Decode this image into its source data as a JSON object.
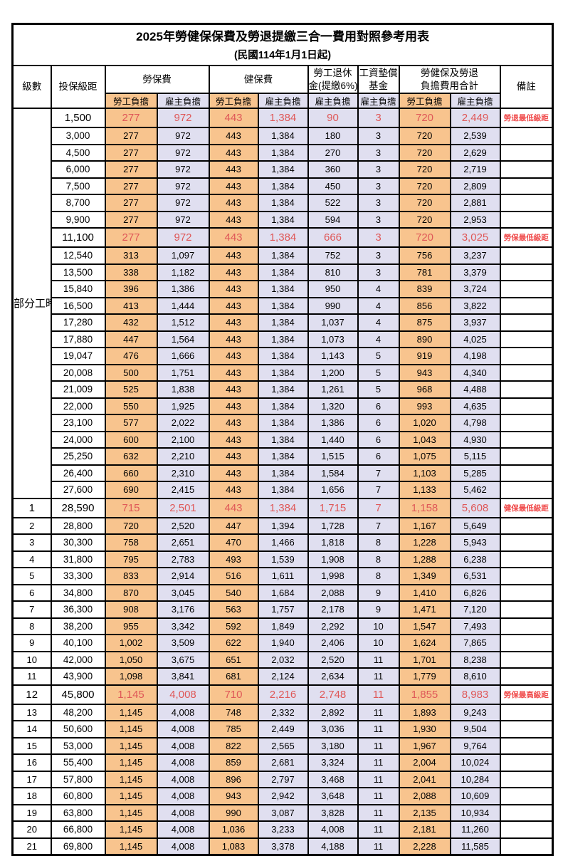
{
  "title": "2025年勞健保保費及勞退提繳三合一費用對照參考用表",
  "subtitle": "(民國114年1月1日起)",
  "header": {
    "level": "級數",
    "salary": "投保級距",
    "labor_group": "勞保費",
    "health_group": "健保費",
    "pension_line1": "勞工退休",
    "pension_line2": "金(提繳6%)",
    "wage_fund_line1": "工資墊償",
    "wage_fund_line2": "基金",
    "total_line1": "勞健保及勞退",
    "total_line2": "負擔費用合計",
    "remark": "備註",
    "employee": "勞工負擔",
    "employer": "雇主負擔"
  },
  "partial_time_label": "部分工時",
  "partial_time_rowspan": 23,
  "colors": {
    "emp": "#F8C48E",
    "er": "#E0DFF0",
    "red": "#DF5858",
    "remark_red": "#F04B4B"
  },
  "row_fields": [
    "level",
    "salary",
    "labor_employee",
    "labor_employer",
    "health_employee",
    "health_employer",
    "pension_employer",
    "wage_fund_employer",
    "total_employee",
    "total_employer",
    "remark",
    "highlight"
  ],
  "rows": [
    [
      "",
      "1,500",
      "277",
      "972",
      "443",
      "1,384",
      "90",
      "3",
      "720",
      "2,449",
      "勞退最低級距",
      true
    ],
    [
      "",
      "3,000",
      "277",
      "972",
      "443",
      "1,384",
      "180",
      "3",
      "720",
      "2,539",
      "",
      false
    ],
    [
      "",
      "4,500",
      "277",
      "972",
      "443",
      "1,384",
      "270",
      "3",
      "720",
      "2,629",
      "",
      false
    ],
    [
      "",
      "6,000",
      "277",
      "972",
      "443",
      "1,384",
      "360",
      "3",
      "720",
      "2,719",
      "",
      false
    ],
    [
      "",
      "7,500",
      "277",
      "972",
      "443",
      "1,384",
      "450",
      "3",
      "720",
      "2,809",
      "",
      false
    ],
    [
      "",
      "8,700",
      "277",
      "972",
      "443",
      "1,384",
      "522",
      "3",
      "720",
      "2,881",
      "",
      false
    ],
    [
      "",
      "9,900",
      "277",
      "972",
      "443",
      "1,384",
      "594",
      "3",
      "720",
      "2,953",
      "",
      false
    ],
    [
      "",
      "11,100",
      "277",
      "972",
      "443",
      "1,384",
      "666",
      "3",
      "720",
      "3,025",
      "勞保最低級距",
      true
    ],
    [
      "",
      "12,540",
      "313",
      "1,097",
      "443",
      "1,384",
      "752",
      "3",
      "756",
      "3,237",
      "",
      false
    ],
    [
      "",
      "13,500",
      "338",
      "1,182",
      "443",
      "1,384",
      "810",
      "3",
      "781",
      "3,379",
      "",
      false
    ],
    [
      "",
      "15,840",
      "396",
      "1,386",
      "443",
      "1,384",
      "950",
      "4",
      "839",
      "3,724",
      "",
      false
    ],
    [
      "",
      "16,500",
      "413",
      "1,444",
      "443",
      "1,384",
      "990",
      "4",
      "856",
      "3,822",
      "",
      false
    ],
    [
      "",
      "17,280",
      "432",
      "1,512",
      "443",
      "1,384",
      "1,037",
      "4",
      "875",
      "3,937",
      "",
      false
    ],
    [
      "",
      "17,880",
      "447",
      "1,564",
      "443",
      "1,384",
      "1,073",
      "4",
      "890",
      "4,025",
      "",
      false
    ],
    [
      "",
      "19,047",
      "476",
      "1,666",
      "443",
      "1,384",
      "1,143",
      "5",
      "919",
      "4,198",
      "",
      false
    ],
    [
      "",
      "20,008",
      "500",
      "1,751",
      "443",
      "1,384",
      "1,200",
      "5",
      "943",
      "4,340",
      "",
      false
    ],
    [
      "",
      "21,009",
      "525",
      "1,838",
      "443",
      "1,384",
      "1,261",
      "5",
      "968",
      "4,488",
      "",
      false
    ],
    [
      "",
      "22,000",
      "550",
      "1,925",
      "443",
      "1,384",
      "1,320",
      "6",
      "993",
      "4,635",
      "",
      false
    ],
    [
      "",
      "23,100",
      "577",
      "2,022",
      "443",
      "1,384",
      "1,386",
      "6",
      "1,020",
      "4,798",
      "",
      false
    ],
    [
      "",
      "24,000",
      "600",
      "2,100",
      "443",
      "1,384",
      "1,440",
      "6",
      "1,043",
      "4,930",
      "",
      false
    ],
    [
      "",
      "25,250",
      "632",
      "2,210",
      "443",
      "1,384",
      "1,515",
      "6",
      "1,075",
      "5,115",
      "",
      false
    ],
    [
      "",
      "26,400",
      "660",
      "2,310",
      "443",
      "1,384",
      "1,584",
      "7",
      "1,103",
      "5,285",
      "",
      false
    ],
    [
      "",
      "27,600",
      "690",
      "2,415",
      "443",
      "1,384",
      "1,656",
      "7",
      "1,133",
      "5,462",
      "",
      false
    ],
    [
      "1",
      "28,590",
      "715",
      "2,501",
      "443",
      "1,384",
      "1,715",
      "7",
      "1,158",
      "5,608",
      "健保最低級距",
      true
    ],
    [
      "2",
      "28,800",
      "720",
      "2,520",
      "447",
      "1,394",
      "1,728",
      "7",
      "1,167",
      "5,649",
      "",
      false
    ],
    [
      "3",
      "30,300",
      "758",
      "2,651",
      "470",
      "1,466",
      "1,818",
      "8",
      "1,228",
      "5,943",
      "",
      false
    ],
    [
      "4",
      "31,800",
      "795",
      "2,783",
      "493",
      "1,539",
      "1,908",
      "8",
      "1,288",
      "6,238",
      "",
      false
    ],
    [
      "5",
      "33,300",
      "833",
      "2,914",
      "516",
      "1,611",
      "1,998",
      "8",
      "1,349",
      "6,531",
      "",
      false
    ],
    [
      "6",
      "34,800",
      "870",
      "3,045",
      "540",
      "1,684",
      "2,088",
      "9",
      "1,410",
      "6,826",
      "",
      false
    ],
    [
      "7",
      "36,300",
      "908",
      "3,176",
      "563",
      "1,757",
      "2,178",
      "9",
      "1,471",
      "7,120",
      "",
      false
    ],
    [
      "8",
      "38,200",
      "955",
      "3,342",
      "592",
      "1,849",
      "2,292",
      "10",
      "1,547",
      "7,493",
      "",
      false
    ],
    [
      "9",
      "40,100",
      "1,002",
      "3,509",
      "622",
      "1,940",
      "2,406",
      "10",
      "1,624",
      "7,865",
      "",
      false
    ],
    [
      "10",
      "42,000",
      "1,050",
      "3,675",
      "651",
      "2,032",
      "2,520",
      "11",
      "1,701",
      "8,238",
      "",
      false
    ],
    [
      "11",
      "43,900",
      "1,098",
      "3,841",
      "681",
      "2,124",
      "2,634",
      "11",
      "1,779",
      "8,610",
      "",
      false
    ],
    [
      "12",
      "45,800",
      "1,145",
      "4,008",
      "710",
      "2,216",
      "2,748",
      "11",
      "1,855",
      "8,983",
      "勞保最高級距",
      true
    ],
    [
      "13",
      "48,200",
      "1,145",
      "4,008",
      "748",
      "2,332",
      "2,892",
      "11",
      "1,893",
      "9,243",
      "",
      false
    ],
    [
      "14",
      "50,600",
      "1,145",
      "4,008",
      "785",
      "2,449",
      "3,036",
      "11",
      "1,930",
      "9,504",
      "",
      false
    ],
    [
      "15",
      "53,000",
      "1,145",
      "4,008",
      "822",
      "2,565",
      "3,180",
      "11",
      "1,967",
      "9,764",
      "",
      false
    ],
    [
      "16",
      "55,400",
      "1,145",
      "4,008",
      "859",
      "2,681",
      "3,324",
      "11",
      "2,004",
      "10,024",
      "",
      false
    ],
    [
      "17",
      "57,800",
      "1,145",
      "4,008",
      "896",
      "2,797",
      "3,468",
      "11",
      "2,041",
      "10,284",
      "",
      false
    ],
    [
      "18",
      "60,800",
      "1,145",
      "4,008",
      "943",
      "2,942",
      "3,648",
      "11",
      "2,088",
      "10,609",
      "",
      false
    ],
    [
      "19",
      "63,800",
      "1,145",
      "4,008",
      "990",
      "3,087",
      "3,828",
      "11",
      "2,135",
      "10,934",
      "",
      false
    ],
    [
      "20",
      "66,800",
      "1,145",
      "4,008",
      "1,036",
      "3,233",
      "4,008",
      "11",
      "2,181",
      "11,260",
      "",
      false
    ],
    [
      "21",
      "69,800",
      "1,145",
      "4,008",
      "1,083",
      "3,378",
      "4,188",
      "11",
      "2,228",
      "11,585",
      "",
      false
    ]
  ]
}
